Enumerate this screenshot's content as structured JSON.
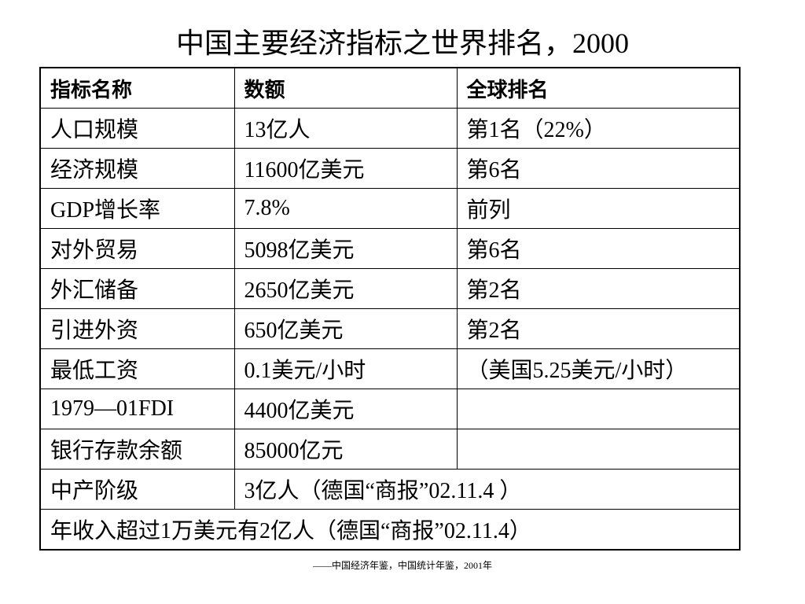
{
  "title": "中国主要经济指标之世界排名，2000",
  "table": {
    "header": [
      "指标名称",
      "数额",
      "全球排名"
    ],
    "rows": [
      [
        "人口规模",
        "13亿人",
        "第1名（22%）"
      ],
      [
        "经济规模",
        "11600亿美元",
        "第6名"
      ],
      [
        "GDP增长率",
        "7.8%",
        "前列"
      ],
      [
        "对外贸易",
        "5098亿美元",
        "第6名"
      ],
      [
        "外汇储备",
        "2650亿美元",
        "第2名"
      ],
      [
        "引进外资",
        "650亿美元",
        "第2名"
      ],
      [
        "最低工资",
        "0.1美元/小时",
        "（美国5.25美元/小时）"
      ],
      [
        "1979—01FDI",
        "4400亿美元",
        null
      ],
      [
        "银行存款余额",
        "85000亿元",
        null
      ],
      [
        "中产阶级",
        "3亿人（德国“商报”02.11.4 ）"
      ],
      [
        "年收入超过1万美元有2亿人（德国“商报”02.11.4）"
      ]
    ]
  },
  "footnote": "——中国经济年鉴，中国统计年鉴，2001年"
}
